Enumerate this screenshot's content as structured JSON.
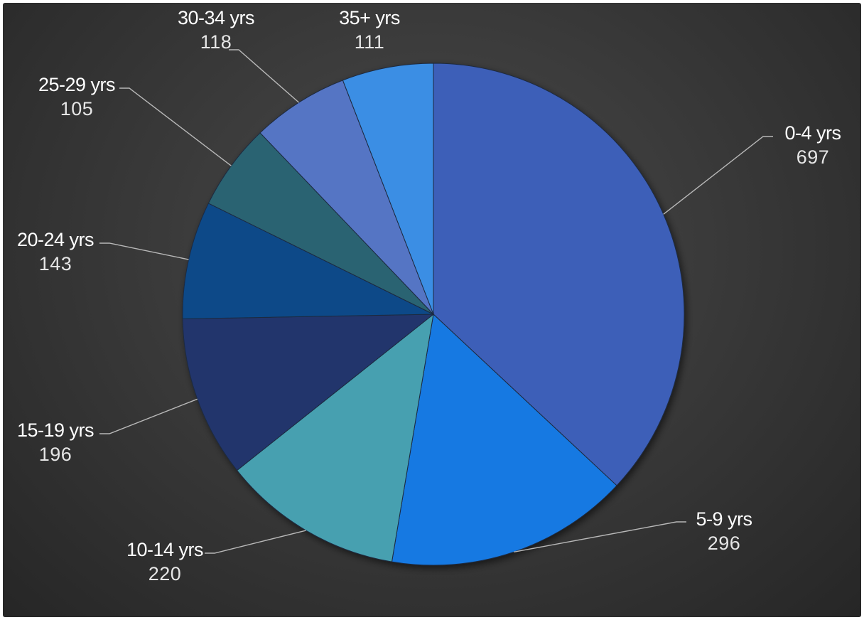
{
  "chart_data": {
    "type": "pie",
    "title": "",
    "categories": [
      "0-4 yrs",
      "5-9 yrs",
      "10-14 yrs",
      "15-19 yrs",
      "20-24 yrs",
      "25-29 yrs",
      "30-34 yrs",
      "35+ yrs"
    ],
    "values": [
      697,
      296,
      220,
      196,
      143,
      105,
      118,
      111
    ],
    "value_labels": [
      "697",
      "296",
      "220",
      "196",
      "143",
      "105",
      "118",
      "111"
    ],
    "colors": [
      "#3d5fb8",
      "#1479e2",
      "#47a0b0",
      "#22356c",
      "#0c4888",
      "#2a6472",
      "#5474c4",
      "#3a8ee4"
    ],
    "start_angle": "12 o'clock",
    "direction": "clockwise",
    "labels_outside": true,
    "leader_lines": true,
    "background": "#333333"
  }
}
